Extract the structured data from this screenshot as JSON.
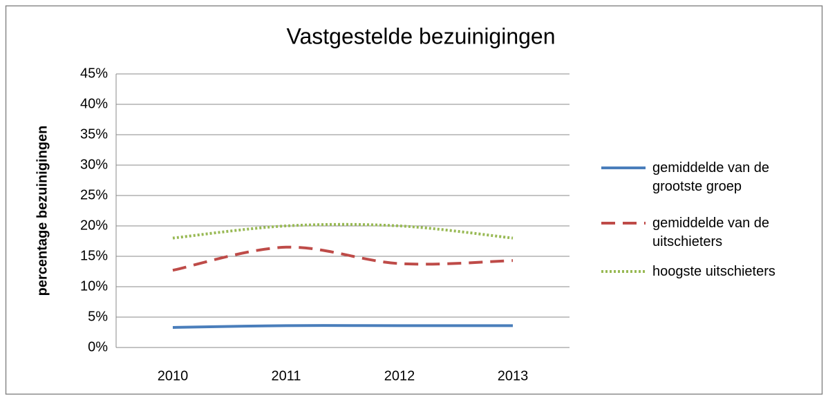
{
  "chart_data": {
    "type": "line",
    "title": "Vastgestelde bezuinigingen",
    "y_label": "percentage bezuinigingen",
    "categories": [
      "2010",
      "2011",
      "2012",
      "2013"
    ],
    "series": [
      {
        "name": "gemiddelde van de grootste groep",
        "color": "#4a7ebb",
        "style": "solid",
        "values": [
          3.3,
          3.6,
          3.6,
          3.6
        ]
      },
      {
        "name": "gemiddelde van de uitschieters",
        "color": "#be4b48",
        "style": "dashed",
        "values": [
          12.7,
          16.5,
          13.8,
          14.3
        ]
      },
      {
        "name": "hoogste uitschieters",
        "color": "#98b954",
        "style": "dotted",
        "values": [
          18,
          20,
          20,
          18
        ]
      }
    ],
    "ylim": [
      0,
      45
    ],
    "yticks": [
      {
        "value": 0,
        "label": "0%"
      },
      {
        "value": 5,
        "label": "5%"
      },
      {
        "value": 10,
        "label": "10%"
      },
      {
        "value": 15,
        "label": "15%"
      },
      {
        "value": 20,
        "label": "20%"
      },
      {
        "value": 25,
        "label": "25%"
      },
      {
        "value": 30,
        "label": "30%"
      },
      {
        "value": 35,
        "label": "35%"
      },
      {
        "value": 40,
        "label": "40%"
      },
      {
        "value": 45,
        "label": "45%"
      }
    ],
    "grid": true,
    "legend": "right",
    "smooth": true
  }
}
